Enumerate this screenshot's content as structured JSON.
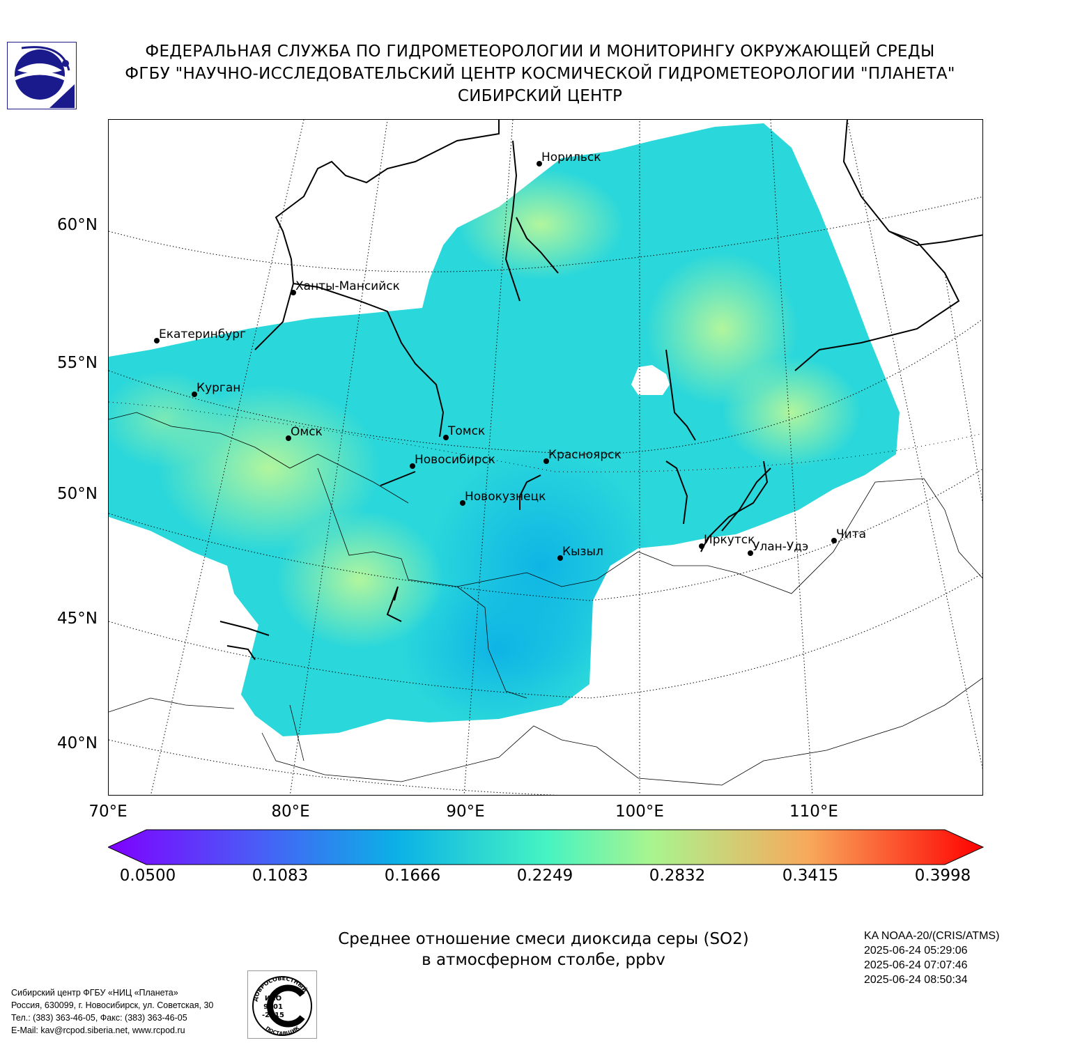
{
  "header": {
    "line1": "ФЕДЕРАЛЬНАЯ СЛУЖБА ПО ГИДРОМЕТЕОРОЛОГИИ И МОНИТОРИНГУ ОКРУЖАЮЩЕЙ СРЕДЫ",
    "line2": "ФГБУ \"НАУЧНО-ИССЛЕДОВАТЕЛЬСКИЙ ЦЕНТР КОСМИЧЕСКОЙ ГИДРОМЕТЕОРОЛОГИИ \"ПЛАНЕТА\"",
    "line3": "СИБИРСКИЙ ЦЕНТР"
  },
  "map": {
    "lat_labels": [
      "60°N",
      "55°N",
      "50°N",
      "45°N",
      "40°N"
    ],
    "lon_labels": [
      "70°E",
      "80°E",
      "90°E",
      "100°E",
      "110°E"
    ],
    "cities": [
      "Норильск",
      "Ханты-Мансийск",
      "Екатеринбург",
      "Курган",
      "Омск",
      "Томск",
      "Новосибирск",
      "Красноярск",
      "Новокузнецк",
      "Иркутск",
      "Улан-Удэ",
      "Чита",
      "Кызыл"
    ]
  },
  "colorbar": {
    "ticks": [
      "0.0500",
      "0.1083",
      "0.1666",
      "0.2249",
      "0.2832",
      "0.3415",
      "0.3998"
    ],
    "colors": [
      "#7f00ff",
      "#4a5cf7",
      "#0bb1e6",
      "#45f3c3",
      "#a8f58f",
      "#f8a95c",
      "#ff0000"
    ]
  },
  "title": {
    "line1": "Среднее отношение смеси диоксида серы (SO2)",
    "line2": "в атмосферном столбе, ppbv"
  },
  "satellite": {
    "name": "KA NOAA-20/(CRIS/ATMS)",
    "times": [
      "2025-06-24 05:29:06",
      "2025-06-24 07:07:46",
      "2025-06-24 08:50:34"
    ]
  },
  "footer": {
    "lines": [
      "Сибирский центр ФГБУ «НИЦ «Планета»",
      "Россия, 630099, г. Новосибирск, ул. Советская, 30",
      "Тел.: (383) 363-46-05, Факс: (383) 363-46-05",
      "E-Mail: kav@rcpod.siberia.net, www.rcpod.ru"
    ]
  },
  "iso_badge": {
    "top_text": "ДОБРОСОВЕСТНЫЙ",
    "line1": "ИСО",
    "line2": "9001",
    "line3": "-2015",
    "bottom_text": "ПОСТАВЩИК"
  }
}
